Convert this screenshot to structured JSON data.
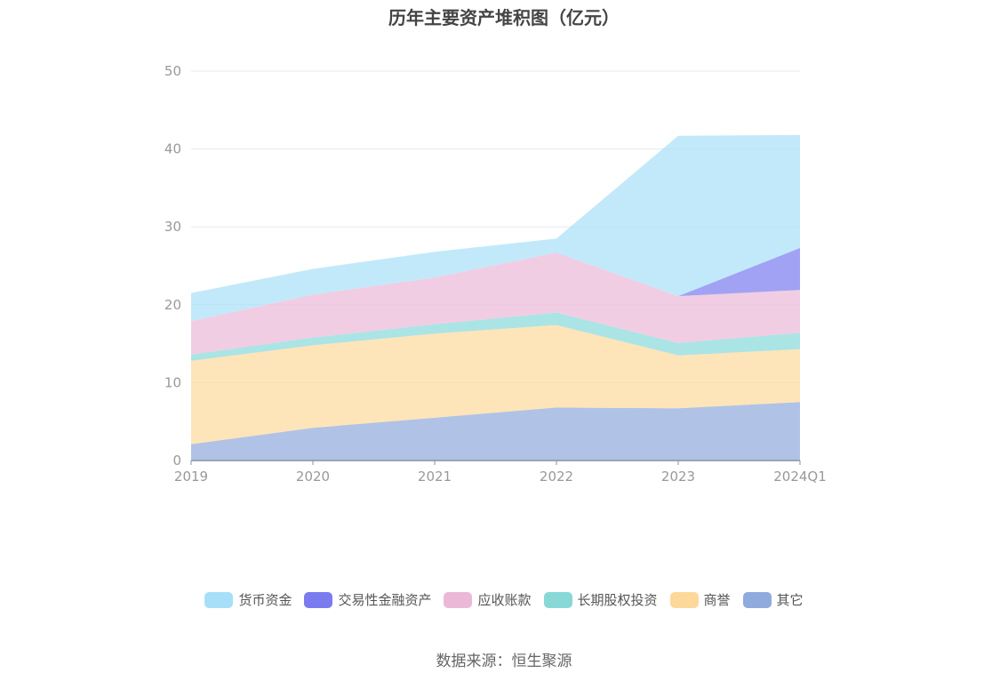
{
  "title": "历年主要资产堆积图（亿元）",
  "source": "数据来源：恒生聚源",
  "chart_data": {
    "type": "area",
    "stacked": true,
    "categories": [
      "2019",
      "2020",
      "2021",
      "2022",
      "2023",
      "2024Q1"
    ],
    "ylim": [
      0,
      50
    ],
    "yticks": [
      0,
      10,
      20,
      30,
      40,
      50
    ],
    "grid": true,
    "legend_position": "bottom",
    "series": [
      {
        "name": "其它",
        "color": "#8faadc",
        "values": [
          2.1,
          4.2,
          5.5,
          6.8,
          6.7,
          7.5
        ]
      },
      {
        "name": "商誉",
        "color": "#fdd89b",
        "values": [
          10.7,
          10.6,
          10.8,
          10.6,
          6.8,
          6.8
        ]
      },
      {
        "name": "长期股权投资",
        "color": "#88d8d8",
        "values": [
          0.8,
          1.0,
          1.2,
          1.6,
          1.6,
          2.1
        ]
      },
      {
        "name": "应收账款",
        "color": "#ebb8d8",
        "values": [
          4.3,
          5.5,
          6.0,
          7.7,
          6.0,
          5.5
        ]
      },
      {
        "name": "交易性金融资产",
        "color": "#7b7bf0",
        "values": [
          0,
          0,
          0,
          0,
          0,
          5.4
        ]
      },
      {
        "name": "货币资金",
        "color": "#a8dff8",
        "values": [
          3.6,
          3.3,
          3.3,
          1.8,
          20.6,
          14.5
        ]
      }
    ],
    "legend_order": [
      "货币资金",
      "交易性金融资产",
      "应收账款",
      "长期股权投资",
      "商誉",
      "其它"
    ]
  }
}
